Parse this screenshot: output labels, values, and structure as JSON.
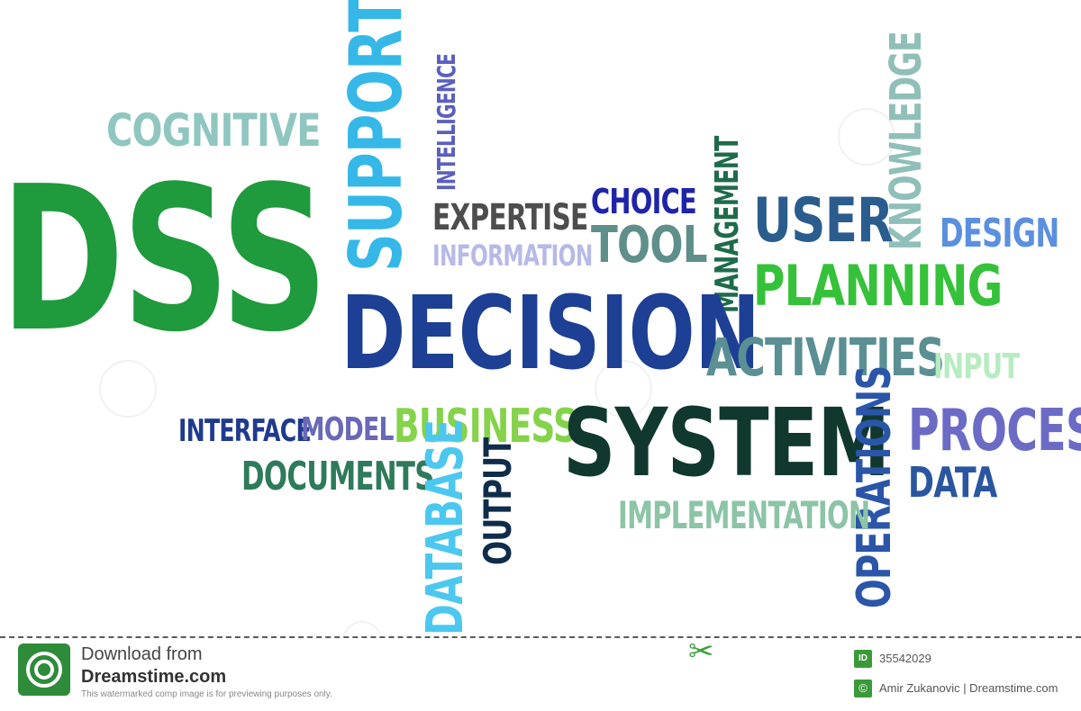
{
  "words": {
    "dss": "DSS",
    "cognitive": "COGNITIVE",
    "support": "SUPPORT",
    "intelligence": "INTELLIGENCE",
    "expertise": "EXPERTISE",
    "choice": "CHOICE",
    "information": "INFORMATION",
    "tool": "TOOL",
    "management": "MANAGEMENT",
    "user": "USER",
    "knowledge": "KNOWLEDGE",
    "design": "DESIGN",
    "planning": "PLANNING",
    "decision": "DECISION",
    "activities": "ACTIVITIES",
    "input": "INPUT",
    "interface": "INTERFACE",
    "model": "MODEL",
    "business": "BUSINESS",
    "system": "SYSTEM",
    "operations": "OPERATIONS",
    "process": "PROCESS",
    "data": "DATA",
    "documents": "DOCUMENTS",
    "database": "DATABASE",
    "output": "OUTPUT",
    "implementation": "IMPLEMENTATION"
  },
  "colors": {
    "dss": "#1f9a3c",
    "cognitive": "#8fc6c0",
    "support": "#35b8e8",
    "intelligence": "#5a5fbf",
    "expertise": "#4d4d4d",
    "choice": "#1f25a8",
    "information": "#b7b9e8",
    "tool": "#5f8f8a",
    "management": "#1e6b4a",
    "user": "#2a5c8e",
    "knowledge": "#8fbfb8",
    "design": "#5b8fe0",
    "planning": "#35c23a",
    "decision": "#1d3f94",
    "activities": "#5a8f93",
    "input": "#b7ecc0",
    "interface": "#1f3a8e",
    "model": "#6a68b8",
    "business": "#84d34a",
    "system": "#10382e",
    "operations": "#2a55a8",
    "process": "#6b6bc6",
    "data": "#2a56a0",
    "documents": "#2e7a5a",
    "database": "#4cc8f0",
    "output": "#0f2c4a",
    "implementation": "#8cc4a6"
  },
  "footer": {
    "download_from": "Download from",
    "site": "Dreamstime.com",
    "note": "This watermarked comp image is for previewing purposes only.",
    "id_label": "ID",
    "id_number": "35542029",
    "copyright_symbol": "©",
    "credit": "Amir Zukanovic | Dreamstime.com",
    "logo_icon": "dreamstime-spiral-logo-icon",
    "scissors_icon": "scissors-icon"
  }
}
